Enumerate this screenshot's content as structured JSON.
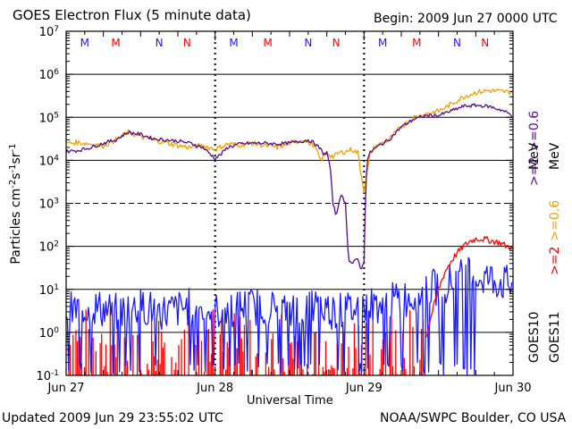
{
  "header": {
    "title": "GOES Electron Flux (5 minute data)",
    "begin": "Begin: 2009 Jun 27 0000 UTC"
  },
  "footer": {
    "updated": "Updated 2009 Jun 29 23:55:02 UTC",
    "credit": "NOAA/SWPC Boulder, CO USA"
  },
  "colors": {
    "purple": "#5a0a8f",
    "orange": "#f0a000",
    "blue": "#1a1aff",
    "red": "#ff0000",
    "marker_blue": "#1a1aff",
    "marker_red": "#ff0000"
  },
  "legend": {
    "goes10": "GOES10",
    "goes11": "GOES11",
    "g10_line1": ">=2",
    "g10_line2": ">=0.6",
    "g11_line1": ">=2",
    "g11_line2": ">=0.6",
    "unit": "MeV"
  },
  "chart_data": {
    "type": "line",
    "title": "GOES Electron Flux (5 minute data)",
    "xlabel": "Universal Time",
    "ylabel": "Particles cm-2s-1sr-1",
    "ylabel_parts": {
      "base": "Particles cm",
      "e1": "-2",
      "mid1": "s",
      "e2": "-1",
      "mid2": "sr",
      "e3": "-1"
    },
    "x_ticks": [
      "Jun 27",
      "Jun 28",
      "Jun 29",
      "Jun 30"
    ],
    "xlim_hours": [
      0,
      72
    ],
    "y_scale": "log",
    "ylim": [
      0.1,
      10000000
    ],
    "y_ticks": [
      {
        "base": "10",
        "exp": "-1"
      },
      {
        "base": "10",
        "exp": "0"
      },
      {
        "base": "10",
        "exp": "1"
      },
      {
        "base": "10",
        "exp": "2"
      },
      {
        "base": "10",
        "exp": "3"
      },
      {
        "base": "10",
        "exp": "4"
      },
      {
        "base": "10",
        "exp": "5"
      },
      {
        "base": "10",
        "exp": "6"
      },
      {
        "base": "10",
        "exp": "7"
      }
    ],
    "markers": [
      {
        "label": "M",
        "hour": 3,
        "color": "blue"
      },
      {
        "label": "M",
        "hour": 8,
        "color": "red"
      },
      {
        "label": "N",
        "hour": 15,
        "color": "blue"
      },
      {
        "label": "N",
        "hour": 19.5,
        "color": "red"
      },
      {
        "label": "M",
        "hour": 27,
        "color": "blue"
      },
      {
        "label": "M",
        "hour": 32.5,
        "color": "red"
      },
      {
        "label": "N",
        "hour": 39,
        "color": "blue"
      },
      {
        "label": "N",
        "hour": 43.5,
        "color": "red"
      },
      {
        "label": "M",
        "hour": 51,
        "color": "blue"
      },
      {
        "label": "M",
        "hour": 56.5,
        "color": "red"
      },
      {
        "label": "N",
        "hour": 63,
        "color": "blue"
      },
      {
        "label": "N",
        "hour": 67.5,
        "color": "red"
      }
    ],
    "series": [
      {
        "name": "GOES10 >=0.6 MeV",
        "color": "purple",
        "x": [
          0,
          2,
          4,
          6,
          8,
          10,
          12,
          14,
          16,
          18,
          20,
          22,
          23,
          24,
          25,
          26,
          28,
          30,
          32,
          34,
          36,
          38,
          39,
          40,
          41,
          41.5,
          42,
          42.5,
          43,
          43.5,
          44,
          44.5,
          45,
          45.5,
          46,
          46.5,
          47,
          47.5,
          48,
          48.3,
          48.6,
          49,
          49.5,
          50,
          52,
          54,
          56,
          58,
          60,
          62,
          64,
          66,
          68,
          70,
          72
        ],
        "y": [
          16000,
          17000,
          20000,
          25000,
          30000,
          45000,
          40000,
          32000,
          30000,
          28000,
          25000,
          20000,
          15000,
          11000,
          14000,
          20000,
          24000,
          25000,
          25000,
          24000,
          25000,
          28000,
          30000,
          25000,
          18000,
          14000,
          15000,
          8000,
          1000,
          500,
          1200,
          1500,
          1000,
          50,
          40,
          45,
          50,
          30,
          40,
          4000,
          11000,
          15000,
          18000,
          20000,
          30000,
          60000,
          90000,
          110000,
          110000,
          140000,
          180000,
          190000,
          180000,
          150000,
          110000
        ]
      },
      {
        "name": "GOES11 >=0.6 MeV",
        "color": "orange",
        "x": [
          0,
          2,
          4,
          6,
          8,
          10,
          12,
          14,
          16,
          18,
          20,
          22,
          24,
          26,
          28,
          30,
          32,
          34,
          36,
          38,
          40,
          41,
          42,
          43,
          44,
          45,
          46,
          47,
          47.5,
          48,
          48.5,
          49,
          50,
          52,
          54,
          56,
          58,
          60,
          62,
          64,
          66,
          68,
          70,
          72
        ],
        "y": [
          25000,
          26000,
          24000,
          22000,
          30000,
          45000,
          35000,
          30000,
          26000,
          22000,
          20000,
          22000,
          18000,
          24000,
          23000,
          25000,
          22000,
          20000,
          25000,
          30000,
          22000,
          10000,
          15000,
          12000,
          15000,
          16000,
          18000,
          15000,
          5000,
          2000,
          5000,
          15000,
          22000,
          30000,
          60000,
          100000,
          120000,
          140000,
          200000,
          300000,
          380000,
          420000,
          400000,
          380000
        ]
      },
      {
        "name": "GOES10 >=2 MeV",
        "color": "blue",
        "x": [
          0,
          4,
          8,
          12,
          16,
          20,
          24,
          28,
          32,
          36,
          40,
          44,
          48,
          52,
          56,
          58,
          60,
          62,
          64,
          66,
          68,
          70,
          72
        ],
        "y": [
          3,
          4,
          3,
          4,
          3,
          4,
          3,
          4,
          4,
          3,
          4,
          3,
          4,
          5,
          7,
          9,
          12,
          15,
          20,
          20,
          18,
          15,
          12
        ]
      },
      {
        "name": "GOES11 >=2 MeV",
        "color": "red",
        "x": [
          58,
          59,
          60,
          61,
          62,
          63,
          64,
          65,
          66,
          67,
          68,
          69,
          70,
          71,
          72
        ],
        "y": [
          0.8,
          3,
          10,
          25,
          45,
          70,
          100,
          130,
          150,
          150,
          140,
          130,
          120,
          100,
          95
        ]
      }
    ]
  }
}
